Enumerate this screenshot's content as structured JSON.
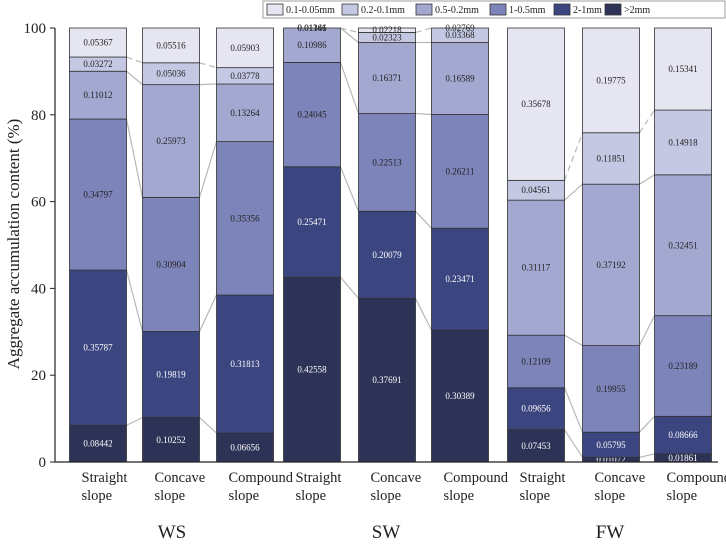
{
  "chart_data": {
    "type": "bar",
    "stacked": true,
    "ylabel": "Aggregate accumulation content (%)",
    "ylim": [
      0,
      100
    ],
    "yticks": [
      0,
      20,
      40,
      60,
      80,
      100
    ],
    "legend": {
      "placement": "top",
      "entries": [
        "0.1-0.05mm",
        "0.2-0.1mm",
        "0.5-0.2mm",
        "1-0.5mm",
        "2-1mm",
        ">2mm"
      ]
    },
    "groups": [
      "WS",
      "SW",
      "FW"
    ],
    "category_labels": [
      {
        "line1": "Straight",
        "line2": "slope"
      },
      {
        "line1": "Concave",
        "line2": "slope"
      },
      {
        "line1": "Compound",
        "line2": "slope"
      },
      {
        "line1": "Straight",
        "line2": "slope"
      },
      {
        "line1": "Concave",
        "line2": "slope"
      },
      {
        "line1": "Compound",
        "line2": "slope"
      },
      {
        "line1": "Straight",
        "line2": "slope"
      },
      {
        "line1": "Concave",
        "line2": "slope"
      },
      {
        "line1": "Compound",
        "line2": "slope"
      }
    ],
    "stack_order_bottom_to_top": [
      ">2mm",
      "2-1mm",
      "1-0.5mm",
      "0.5-0.2mm",
      "0.2-0.1mm",
      "0.1-0.05mm"
    ],
    "colors": {
      ">2mm": "#2d3357",
      "2-1mm": "#3b4580",
      "1-0.5mm": "#7d84ba",
      "0.5-0.2mm": "#a3a8d1",
      "0.2-0.1mm": "#c5c8e3",
      "0.1-0.05mm": "#e6e6f2"
    },
    "bars": [
      {
        "group": "WS",
        "values": {
          ">2mm": 0.08442,
          "2-1mm": 0.35787,
          "1-0.5mm": 0.34797,
          "0.5-0.2mm": 0.11012,
          "0.2-0.1mm": 0.03272,
          "0.1-0.05mm": 0.05367
        }
      },
      {
        "group": "WS",
        "values": {
          ">2mm": 0.10252,
          "2-1mm": 0.19819,
          "1-0.5mm": 0.30904,
          "0.5-0.2mm": 0.25973,
          "0.2-0.1mm": 0.05036,
          "0.1-0.05mm": 0.05516
        }
      },
      {
        "group": "WS",
        "values": {
          ">2mm": 0.06656,
          "2-1mm": 0.31813,
          "1-0.5mm": 0.35356,
          "0.5-0.2mm": 0.13264,
          "0.2-0.1mm": 0.03778,
          "0.1-0.05mm": 0.05903
        }
      },
      {
        "group": "SW",
        "values": {
          ">2mm": 0.42558,
          "2-1mm": 0.25471,
          "1-0.5mm": 0.24045,
          "0.5-0.2mm": 0.10986,
          "0.2-0.1mm": 0.01166,
          "0.1-0.05mm": 0.01341
        }
      },
      {
        "group": "SW",
        "values": {
          ">2mm": 0.37691,
          "2-1mm": 0.20079,
          "1-0.5mm": 0.22513,
          "0.5-0.2mm": 0.16371,
          "0.2-0.1mm": 0.02323,
          "0.1-0.05mm": 0.02218
        }
      },
      {
        "group": "SW",
        "values": {
          ">2mm": 0.30389,
          "2-1mm": 0.23471,
          "1-0.5mm": 0.26211,
          "0.5-0.2mm": 0.16589,
          "0.2-0.1mm": 0.03368,
          "0.1-0.05mm": 0.02769
        }
      },
      {
        "group": "FW",
        "values": {
          ">2mm": 0.07453,
          "2-1mm": 0.09656,
          "1-0.5mm": 0.12109,
          "0.5-0.2mm": 0.31117,
          "0.2-0.1mm": 0.04561,
          "0.1-0.05mm": 0.35678
        }
      },
      {
        "group": "FW",
        "values": {
          ">2mm": 0.01072,
          "2-1mm": 0.05795,
          "1-0.5mm": 0.19955,
          "0.5-0.2mm": 0.37192,
          "0.2-0.1mm": 0.11851,
          "0.1-0.05mm": 0.19775
        }
      },
      {
        "group": "FW",
        "values": {
          ">2mm": 0.01861,
          "2-1mm": 0.08666,
          "1-0.5mm": 0.23189,
          "0.5-0.2mm": 0.32451,
          "0.2-0.1mm": 0.14918,
          "0.1-0.05mm": 0.15341
        }
      }
    ]
  }
}
